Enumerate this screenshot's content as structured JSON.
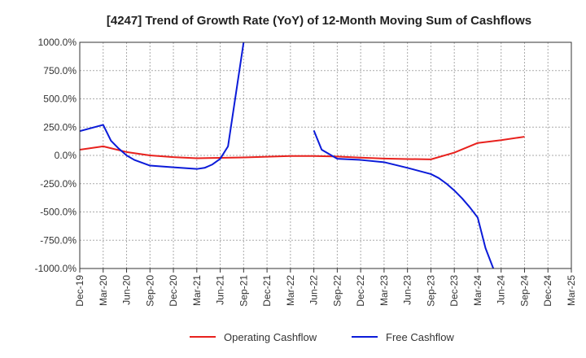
{
  "chart_data": {
    "type": "line",
    "title": "[4247]  Trend of Growth Rate (YoY) of 12-Month Moving Sum of Cashflows",
    "xlabel": "",
    "ylabel": "",
    "ylim": [
      -1000,
      1000
    ],
    "y_ticks": [
      1000,
      750,
      500,
      250,
      0,
      -250,
      -500,
      -750,
      -1000
    ],
    "y_tick_labels": [
      "1000.0%",
      "750.0%",
      "500.0%",
      "250.0%",
      "0.0%",
      "-250.0%",
      "-500.0%",
      "-750.0%",
      "-1000.0%"
    ],
    "x_tick_labels": [
      "Dec-19",
      "Mar-20",
      "Jun-20",
      "Sep-20",
      "Dec-20",
      "Mar-21",
      "Jun-21",
      "Sep-21",
      "Dec-21",
      "Mar-22",
      "Jun-22",
      "Sep-22",
      "Dec-22",
      "Mar-23",
      "Jun-23",
      "Sep-23",
      "Dec-23",
      "Mar-24",
      "Jun-24",
      "Sep-24",
      "Dec-24",
      "Mar-25"
    ],
    "grid": true,
    "legend_position": "bottom",
    "series": [
      {
        "name": "Operating Cashflow",
        "color": "#e8211d",
        "points": [
          [
            "Dec-19",
            50
          ],
          [
            "Mar-20",
            80
          ],
          [
            "Jun-20",
            30
          ],
          [
            "Sep-20",
            0
          ],
          [
            "Dec-20",
            -15
          ],
          [
            "Mar-21",
            -25
          ],
          [
            "Jun-21",
            -22
          ],
          [
            "Sep-21",
            -18
          ],
          [
            "Dec-21",
            -12
          ],
          [
            "Mar-22",
            -5
          ],
          [
            "Jun-22",
            -5
          ],
          [
            "Sep-22",
            -10
          ],
          [
            "Dec-22",
            -20
          ],
          [
            "Mar-23",
            -28
          ],
          [
            "Jun-23",
            -32
          ],
          [
            "Sep-23",
            -35
          ],
          [
            "Dec-23",
            25
          ],
          [
            "Mar-24",
            110
          ],
          [
            "Jun-24",
            135
          ],
          [
            "Sep-24",
            165
          ]
        ]
      },
      {
        "name": "Free Cashflow",
        "color": "#0b1bd9",
        "segments": [
          [
            [
              "Dec-19",
              215
            ],
            [
              "Mar-20",
              270
            ],
            [
              "Apr-20",
              130
            ],
            [
              "May-20",
              60
            ],
            [
              "Jun-20",
              0
            ],
            [
              "Jul-20",
              -40
            ],
            [
              "Sep-20",
              -90
            ],
            [
              "Dec-20",
              -105
            ],
            [
              "Mar-21",
              -120
            ],
            [
              "Apr-21",
              -110
            ],
            [
              "May-21",
              -80
            ],
            [
              "Jun-21",
              -30
            ],
            [
              "Jul-21",
              80
            ],
            [
              "Sep-21",
              1000
            ]
          ],
          [
            [
              "Jun-22",
              220
            ],
            [
              "Jul-22",
              50
            ],
            [
              "Sep-22",
              -30
            ],
            [
              "Dec-22",
              -40
            ],
            [
              "Mar-23",
              -60
            ],
            [
              "Jun-23",
              -110
            ],
            [
              "Sep-23",
              -165
            ],
            [
              "Oct-23",
              -200
            ],
            [
              "Nov-23",
              -250
            ],
            [
              "Dec-23",
              -310
            ],
            [
              "Jan-24",
              -380
            ],
            [
              "Feb-24",
              -460
            ],
            [
              "Mar-24",
              -550
            ],
            [
              "Apr-24",
              -820
            ],
            [
              "May-24",
              -1000
            ]
          ]
        ]
      }
    ]
  }
}
